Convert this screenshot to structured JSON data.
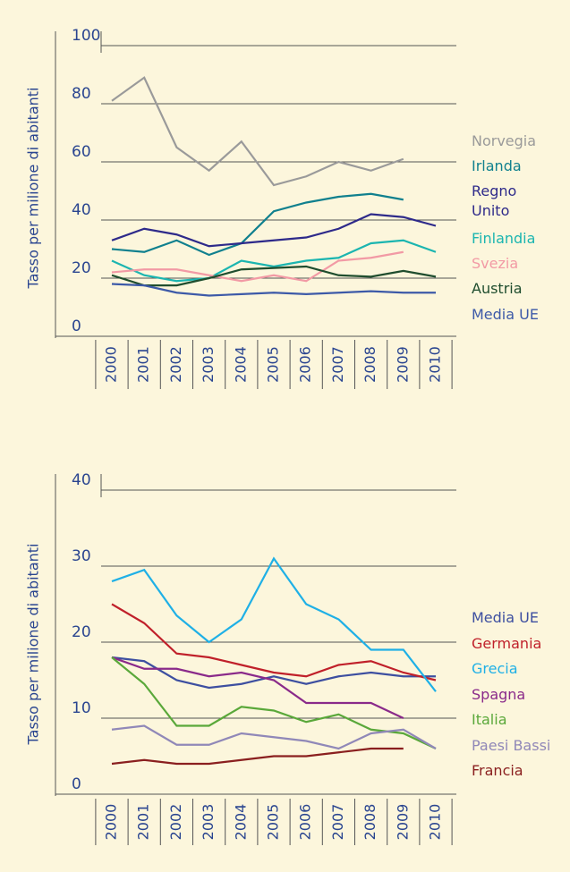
{
  "chart_data": [
    {
      "type": "line",
      "y_label": "Tasso per milione di abitanti",
      "categories": [
        "2000",
        "2001",
        "2002",
        "2003",
        "2004",
        "2005",
        "2006",
        "2007",
        "2008",
        "2009",
        "2010"
      ],
      "ylim": [
        0,
        100
      ],
      "yticks": [
        0,
        20,
        40,
        60,
        80,
        100
      ],
      "grid": true,
      "series": [
        {
          "name": "Norvegia",
          "color": "#9a9a9a",
          "values": [
            81,
            89,
            65,
            57,
            67,
            52,
            55,
            60,
            57,
            61,
            null
          ]
        },
        {
          "name": "Irlanda",
          "color": "#10808e",
          "values": [
            30,
            29,
            33,
            28,
            32,
            43,
            46,
            48,
            49,
            47,
            null
          ]
        },
        {
          "name": "Regno Unito",
          "color": "#2e2a8a",
          "values": [
            33,
            37,
            35,
            31,
            32,
            33,
            34,
            37,
            42,
            41,
            38
          ]
        },
        {
          "name": "Finlandia",
          "color": "#1bb5b0",
          "values": [
            26,
            21,
            19,
            20,
            26,
            24,
            26,
            27,
            32,
            33,
            29
          ]
        },
        {
          "name": "Svezia",
          "color": "#f29aa5",
          "values": [
            22,
            23,
            23,
            21,
            19,
            21,
            19,
            26,
            27,
            29,
            null
          ]
        },
        {
          "name": "Austria",
          "color": "#1f4d2e",
          "values": [
            21,
            17.5,
            17.5,
            20,
            23,
            23.5,
            24,
            21,
            20.5,
            22.5,
            20.5
          ]
        },
        {
          "name": "Media UE",
          "color": "#3d5aa8",
          "values": [
            18,
            17.5,
            15,
            14,
            14.5,
            15,
            14.5,
            15,
            15.5,
            15,
            15
          ]
        }
      ]
    },
    {
      "type": "line",
      "y_label": "Tasso per milione di abitanti",
      "categories": [
        "2000",
        "2001",
        "2002",
        "2003",
        "2004",
        "2005",
        "2006",
        "2007",
        "2008",
        "2009",
        "2010"
      ],
      "ylim": [
        0,
        40
      ],
      "yticks": [
        0,
        10,
        20,
        30,
        40
      ],
      "grid": true,
      "series": [
        {
          "name": "Media UE",
          "color": "#3d4fa0",
          "values": [
            18,
            17.5,
            15,
            14,
            14.5,
            15.5,
            14.5,
            15.5,
            16,
            15.5,
            15.5
          ]
        },
        {
          "name": "Germania",
          "color": "#c0202a",
          "values": [
            25,
            22.5,
            18.5,
            18,
            17,
            16,
            15.5,
            17,
            17.5,
            16,
            15
          ]
        },
        {
          "name": "Grecia",
          "color": "#1fb0e6",
          "values": [
            28,
            29.5,
            23.5,
            20,
            23,
            31,
            25,
            23,
            19,
            19,
            13.5
          ]
        },
        {
          "name": "Spagna",
          "color": "#8a2a8a",
          "values": [
            18,
            16.5,
            16.5,
            15.5,
            16,
            15,
            12,
            12,
            12,
            10,
            null
          ]
        },
        {
          "name": "Italia",
          "color": "#5aa83a",
          "values": [
            18,
            14.5,
            9,
            9,
            11.5,
            11,
            9.5,
            10.5,
            8.5,
            8,
            6
          ]
        },
        {
          "name": "Paesi Bassi",
          "color": "#9088b8",
          "values": [
            8.5,
            9,
            6.5,
            6.5,
            8,
            7.5,
            7,
            6,
            8,
            8.5,
            6
          ]
        },
        {
          "name": "Francia",
          "color": "#8a1f1f",
          "values": [
            4,
            4.5,
            4,
            4,
            4.5,
            5,
            5,
            5.5,
            6,
            6,
            null
          ]
        }
      ]
    }
  ]
}
